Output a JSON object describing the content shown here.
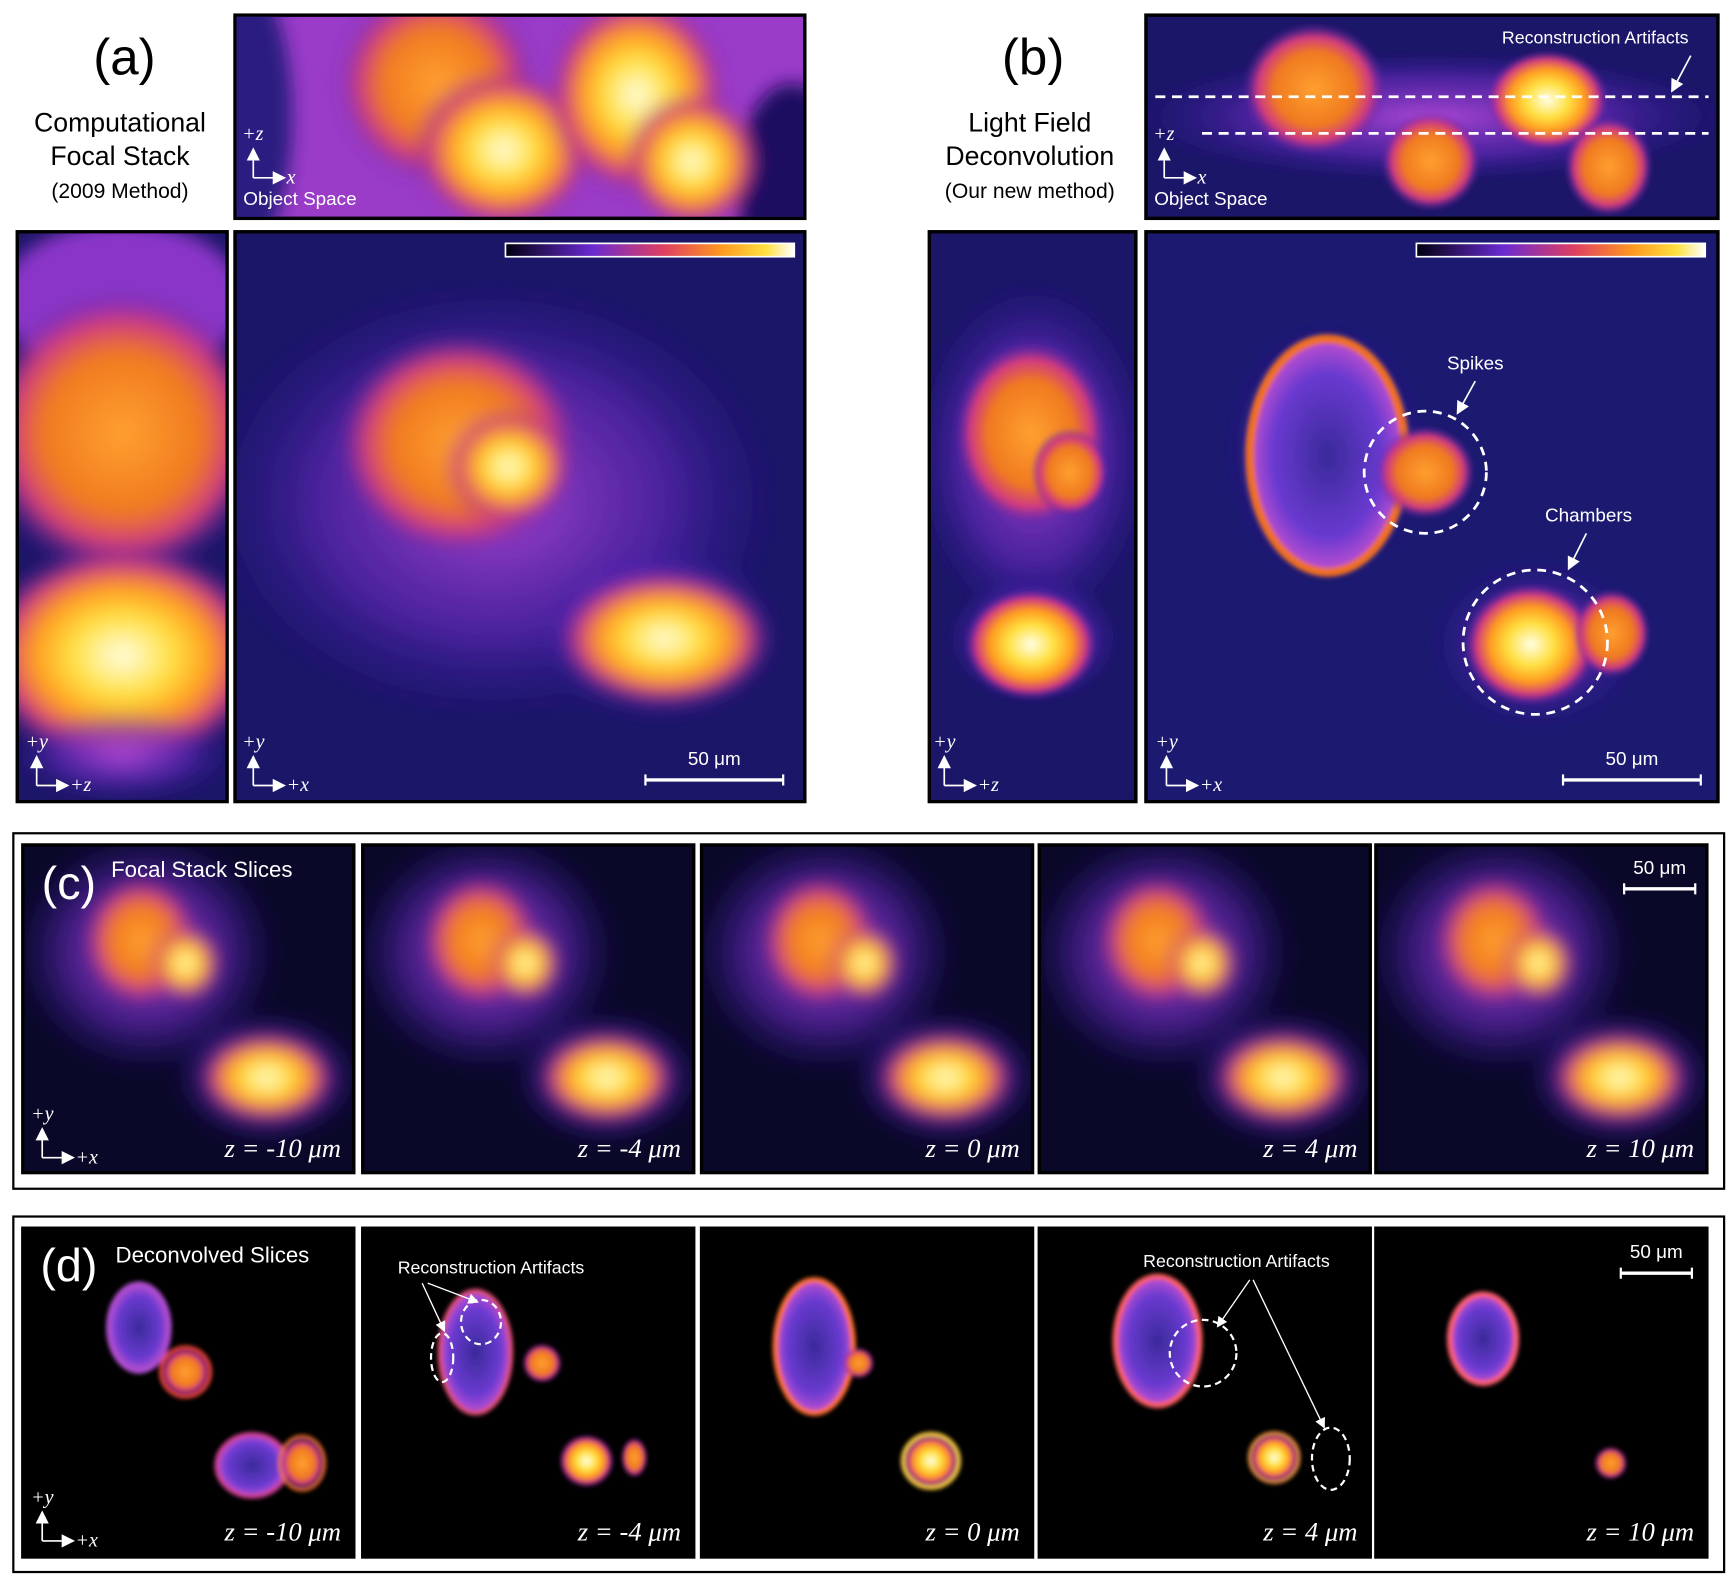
{
  "panel_a": {
    "label": "(a)",
    "title": [
      "Computational",
      "Focal Stack",
      "(2009 Method)"
    ],
    "object_space": "Object Space",
    "xz_axes": [
      "+z",
      "x"
    ],
    "yz_axes": [
      "+y",
      "+z"
    ],
    "xy_axes": [
      "+y",
      "+x"
    ],
    "scale_bar": "50 μm"
  },
  "panel_b": {
    "label": "(b)",
    "title": [
      "Light Field",
      "Deconvolution",
      "(Our new method)"
    ],
    "object_space": "Object Space",
    "xz_axes": [
      "+z",
      "x"
    ],
    "yz_axes": [
      "+y",
      "+z"
    ],
    "xy_axes": [
      "+y",
      "+x"
    ],
    "scale_bar": "50 μm",
    "annotations": [
      "Reconstruction Artifacts",
      "Spikes",
      "Chambers"
    ]
  },
  "panel_c": {
    "label": "(c)",
    "title": "Focal Stack Slices",
    "axes": [
      "+y",
      "+x"
    ],
    "scale_bar": "50 μm",
    "slices": [
      "z = -10 μm",
      "z = -4 μm",
      "z = 0 μm",
      "z = 4 μm",
      "z = 10 μm"
    ]
  },
  "panel_d": {
    "label": "(d)",
    "title": "Deconvolved Slices",
    "axes": [
      "+y",
      "+x"
    ],
    "scale_bar": "50 μm",
    "annotations": [
      "Reconstruction Artifacts",
      "Reconstruction Artifacts"
    ],
    "slices": [
      "z = -10 μm",
      "z = -4 μm",
      "z = 0 μm",
      "z = 4 μm",
      "z = 10 μm"
    ]
  }
}
